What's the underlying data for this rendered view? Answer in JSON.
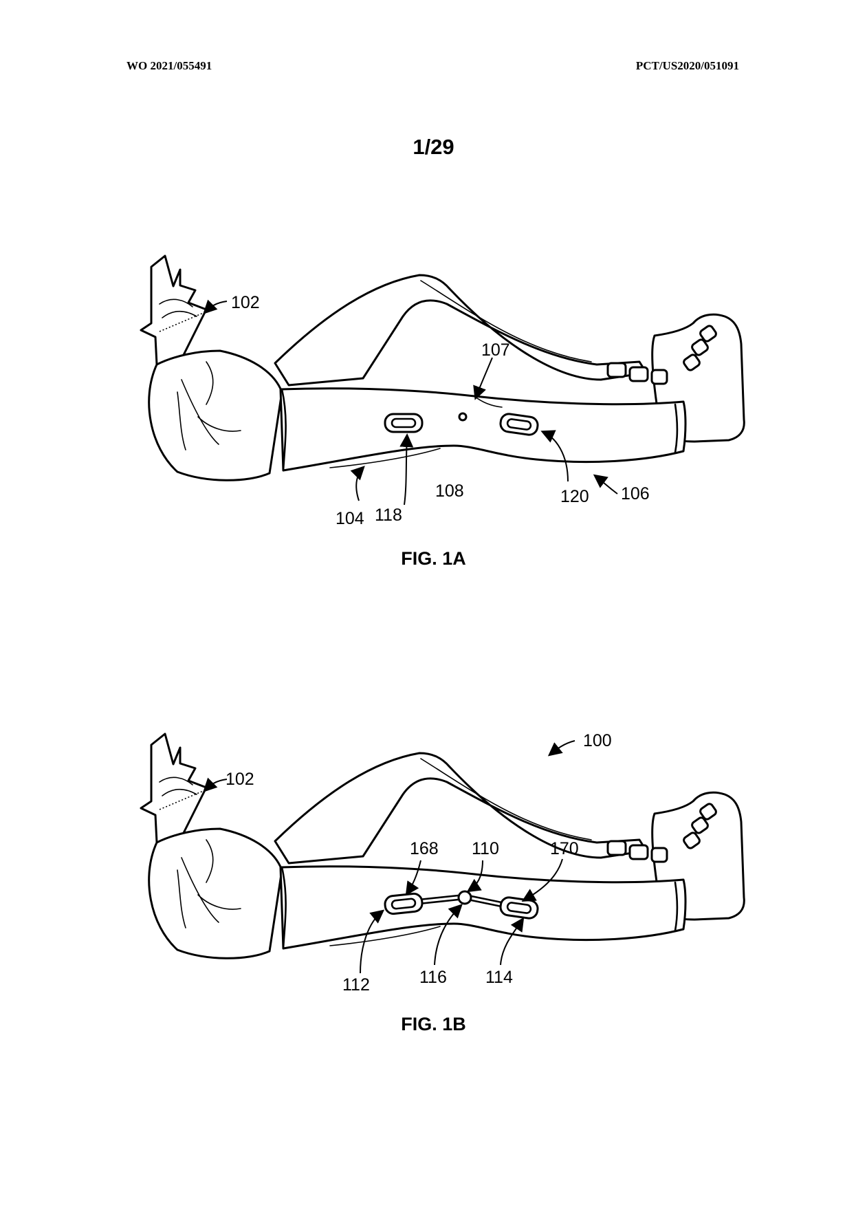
{
  "header": {
    "publication_number": "WO 2021/055491",
    "application_number": "PCT/US2020/051091"
  },
  "sheet_number": "1/29",
  "figures": [
    {
      "caption": "FIG. 1A",
      "labels": {
        "l102": "102",
        "l107": "107",
        "l108": "108",
        "l118": "118",
        "l120": "120",
        "l104": "104",
        "l106": "106"
      }
    },
    {
      "caption": "FIG. 1B",
      "labels": {
        "l100": "100",
        "l102": "102",
        "l110": "110",
        "l168": "168",
        "l170": "170",
        "l112": "112",
        "l116": "116",
        "l114": "114"
      }
    }
  ]
}
